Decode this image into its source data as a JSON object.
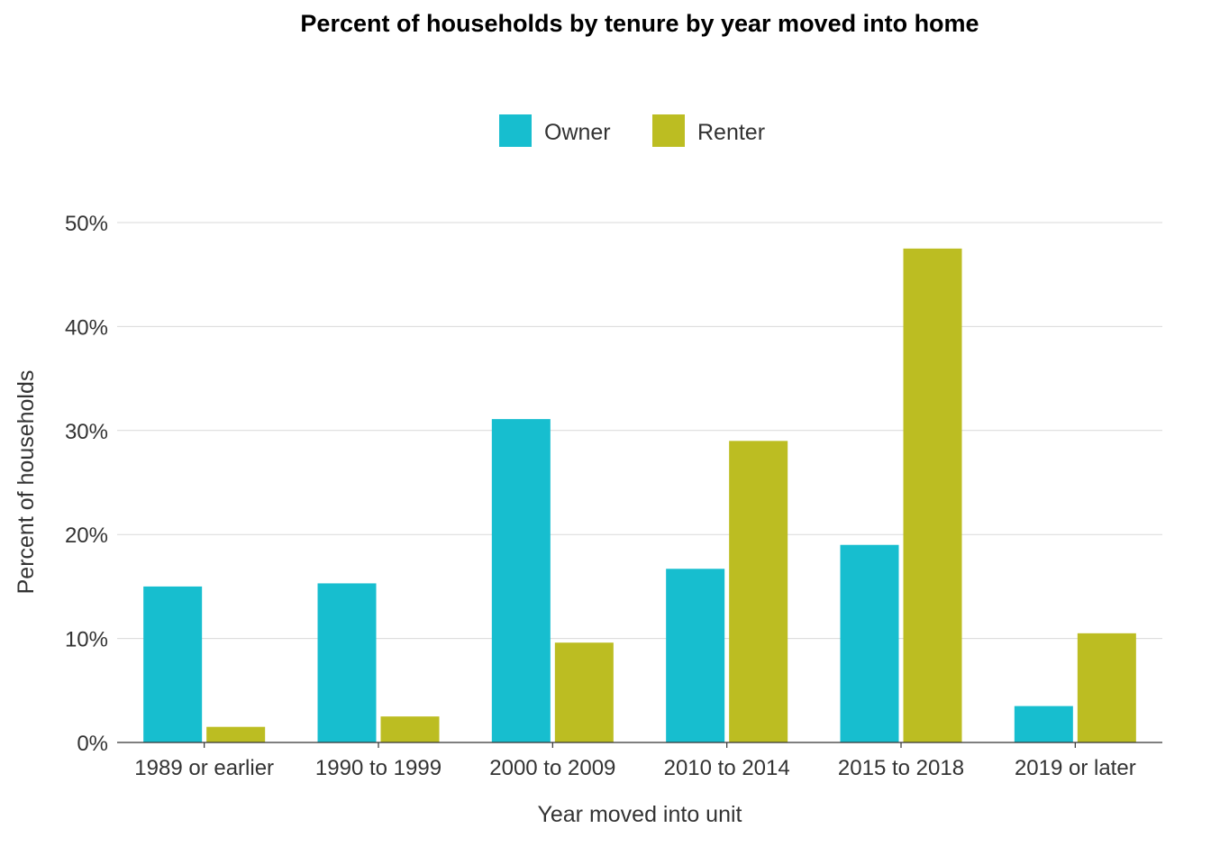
{
  "chart_data": {
    "type": "bar",
    "title": "Percent of households by tenure by year moved into home",
    "xlabel": "Year moved into unit",
    "ylabel": "Percent of households",
    "categories": [
      "1989 or earlier",
      "1990 to 1999",
      "2000 to 2009",
      "2010 to 2014",
      "2015 to 2018",
      "2019 or later"
    ],
    "series": [
      {
        "name": "Owner",
        "color": "#17becf",
        "values": [
          15.0,
          15.3,
          31.1,
          16.7,
          19.0,
          3.5
        ]
      },
      {
        "name": "Renter",
        "color": "#bcbd22",
        "values": [
          1.5,
          2.5,
          9.6,
          29.0,
          47.5,
          10.5
        ]
      }
    ],
    "ylim": [
      0,
      50
    ],
    "yticks": [
      0,
      10,
      20,
      30,
      40,
      50
    ],
    "ytick_labels": [
      "0%",
      "10%",
      "20%",
      "30%",
      "40%",
      "50%"
    ],
    "grid": true,
    "legend_position": "top"
  }
}
